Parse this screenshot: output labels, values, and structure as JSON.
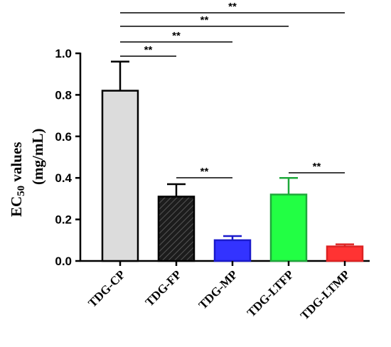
{
  "chart_data": {
    "type": "bar",
    "categories": [
      "TDG-CP",
      "TDG-FP",
      "TDG-MP",
      "TDG-LTFP",
      "TDG-LTMP"
    ],
    "values": [
      0.82,
      0.31,
      0.1,
      0.32,
      0.07
    ],
    "errors": [
      0.14,
      0.06,
      0.02,
      0.08,
      0.01
    ],
    "colors": [
      "#dcdcdc",
      "#1c1c1c",
      "#3333ff",
      "#22ff44",
      "#ff3333"
    ],
    "hatched": [
      false,
      true,
      false,
      false,
      false
    ],
    "edge_colors": [
      "#000000",
      "#000000",
      "#1a1acc",
      "#1ea83a",
      "#dd2222"
    ],
    "ylabel_main": "EC",
    "ylabel_sub": "50",
    "ylabel_suffix": " values",
    "ylabel_units": "(mg/mL)",
    "ylim": [
      0,
      1.0
    ],
    "yticks": [
      "0.0",
      "0.2",
      "0.4",
      "0.6",
      "0.8",
      "1.0"
    ],
    "grid": false,
    "significance": [
      {
        "from": "TDG-CP",
        "to": "TDG-LTMP",
        "label": "**"
      },
      {
        "from": "TDG-CP",
        "to": "TDG-LTFP",
        "label": "**"
      },
      {
        "from": "TDG-CP",
        "to": "TDG-MP",
        "label": "**"
      },
      {
        "from": "TDG-CP",
        "to": "TDG-FP",
        "label": "**"
      },
      {
        "from": "TDG-FP",
        "to": "TDG-MP",
        "label": "**"
      },
      {
        "from": "TDG-LTFP",
        "to": "TDG-LTMP",
        "label": "**"
      }
    ]
  }
}
